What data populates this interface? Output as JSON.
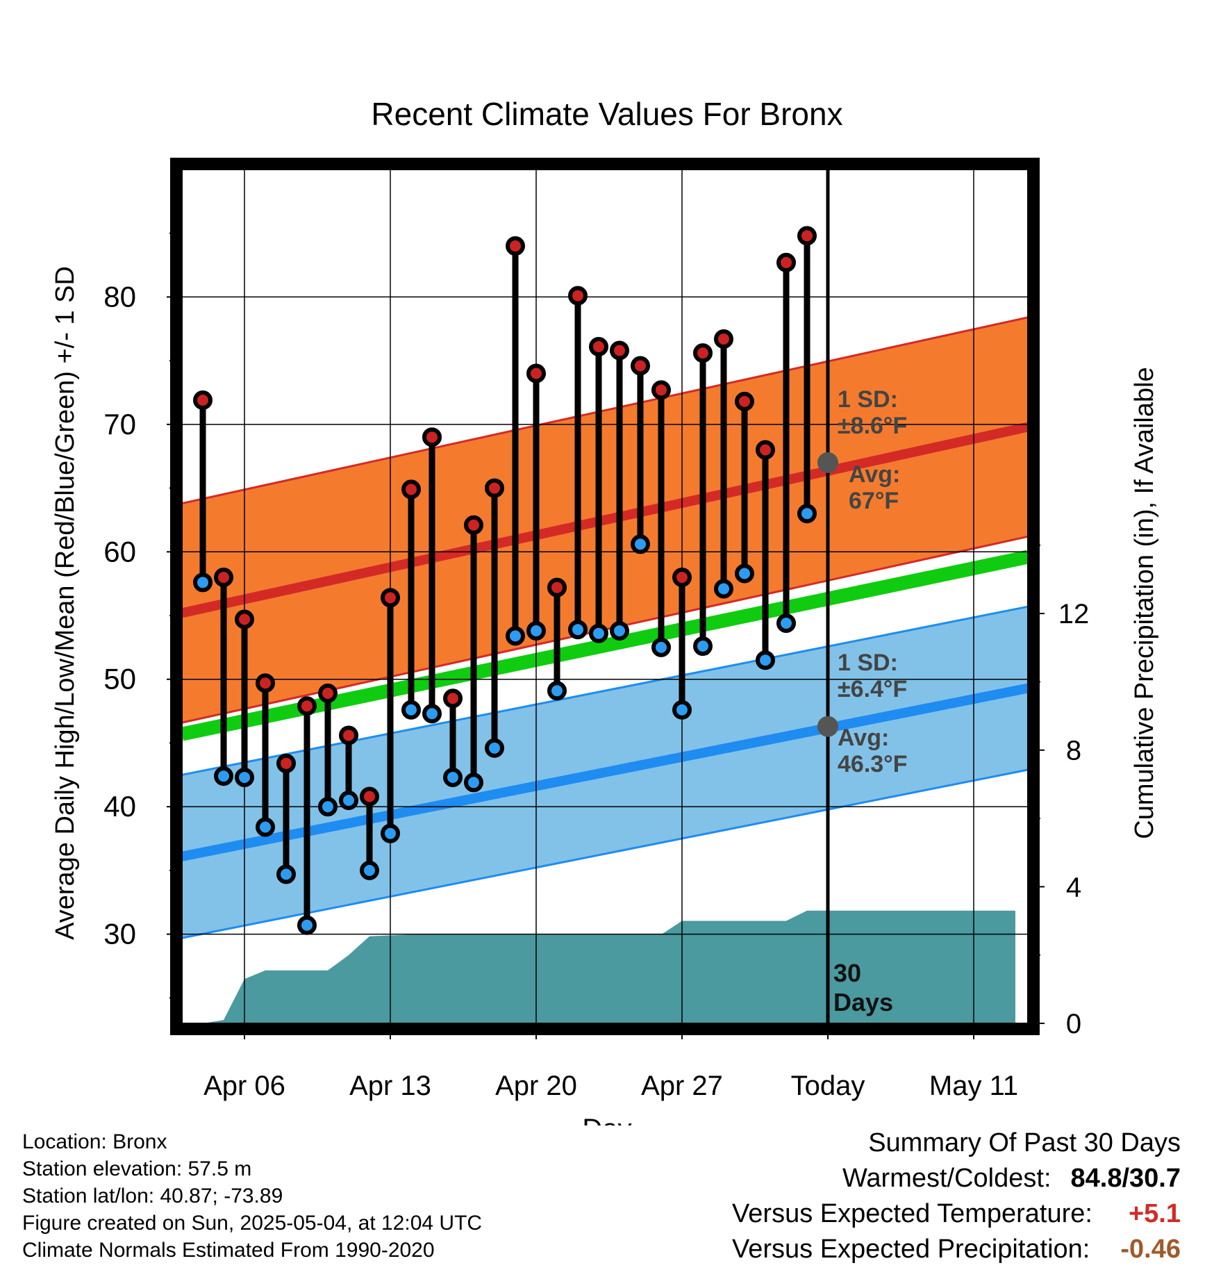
{
  "chart_data": {
    "type": "line",
    "title": "Recent Climate Values For Bronx",
    "xlabel": "Day",
    "ylabel": "Average Daily High/Low/Mean (Red/Blue/Green) +/- 1 SD",
    "y2label": "Cumulative Precipitation (in), If Available",
    "x_ticks": [
      "Apr 06",
      "Apr 13",
      "Apr 20",
      "Apr 27",
      "Today",
      "May 11"
    ],
    "y_ticks": [
      "30",
      "40",
      "50",
      "60",
      "70",
      "80"
    ],
    "y2_ticks": [
      "0",
      "4",
      "8",
      "12"
    ],
    "ylim": [
      23,
      90
    ],
    "y2lim": [
      0,
      25
    ],
    "x_start": "Apr 03",
    "x_end": "May 13",
    "days": [
      "Apr 04",
      "Apr 05",
      "Apr 06",
      "Apr 07",
      "Apr 08",
      "Apr 09",
      "Apr 10",
      "Apr 11",
      "Apr 12",
      "Apr 13",
      "Apr 14",
      "Apr 15",
      "Apr 16",
      "Apr 17",
      "Apr 18",
      "Apr 19",
      "Apr 20",
      "Apr 21",
      "Apr 22",
      "Apr 23",
      "Apr 24",
      "Apr 25",
      "Apr 26",
      "Apr 27",
      "Apr 28",
      "Apr 29",
      "Apr 30",
      "May 01",
      "May 02",
      "May 03"
    ],
    "highs": [
      71.9,
      58.0,
      54.7,
      49.7,
      43.4,
      47.9,
      48.9,
      45.6,
      40.8,
      56.4,
      64.9,
      69.0,
      48.5,
      62.1,
      65.0,
      84.0,
      74.0,
      57.2,
      80.1,
      76.1,
      75.8,
      74.6,
      72.7,
      58.0,
      75.6,
      76.7,
      71.8,
      68.0,
      82.7,
      84.8
    ],
    "lows": [
      57.6,
      42.4,
      42.3,
      38.4,
      34.7,
      30.7,
      40.0,
      40.5,
      35.0,
      37.9,
      47.6,
      47.3,
      42.3,
      41.9,
      44.6,
      53.4,
      53.8,
      49.1,
      53.9,
      53.6,
      53.8,
      60.6,
      52.5,
      47.6,
      52.6,
      57.1,
      58.3,
      51.5,
      54.4,
      63.0
    ],
    "normal_high": {
      "start": 55.2,
      "end": 69.8,
      "sd": 8.6
    },
    "normal_low": {
      "start": 36.1,
      "end": 49.3,
      "sd": 6.4
    },
    "normal_mean": {
      "start": 45.7,
      "end": 59.6
    },
    "precip": [
      {
        "day": "Apr 04",
        "value": 0.0
      },
      {
        "day": "Apr 05",
        "value": 0.1
      },
      {
        "day": "Apr 06",
        "value": 1.3
      },
      {
        "day": "Apr 07",
        "value": 1.55
      },
      {
        "day": "Apr 10",
        "value": 1.55
      },
      {
        "day": "Apr 11",
        "value": 2.0
      },
      {
        "day": "Apr 12",
        "value": 2.55
      },
      {
        "day": "Apr 14",
        "value": 2.6
      },
      {
        "day": "Apr 26",
        "value": 2.6
      },
      {
        "day": "Apr 27",
        "value": 3.0
      },
      {
        "day": "May 02",
        "value": 3.0
      },
      {
        "day": "May 03",
        "value": 3.3
      },
      {
        "day": "May 13",
        "value": 3.3
      }
    ],
    "today_label": [
      "30",
      "Days"
    ],
    "high_sd_label": [
      "1 SD:",
      "±8.6°F"
    ],
    "high_avg_label": [
      "Avg:",
      "67°F"
    ],
    "low_sd_label": [
      "1 SD:",
      "±6.4°F"
    ],
    "low_avg_label": [
      "Avg:",
      "46.3°F"
    ],
    "today_high_avg": 67,
    "today_low_avg": 46.3,
    "colors": {
      "high_band": "#f47b2e",
      "high_line": "#d42a26",
      "low_band": "#82c2e8",
      "low_line": "#1e8cf0",
      "mean_line": "#10cc10",
      "precip": "#4a9aa0",
      "high_dot": "#cc2222",
      "low_dot": "#2b9cf2",
      "label": "#444444"
    }
  },
  "info": {
    "location": "Location: Bronx",
    "elevation": "Station elevation: 57.5 m",
    "latlon": "Station lat/lon: 40.87; -73.89",
    "created": "Figure created on Sun, 2025-05-04, at 12:04 UTC",
    "normals": "Climate Normals Estimated From 1990-2020"
  },
  "summary": {
    "title": "Summary Of Past 30 Days",
    "warm_cold_label": "Warmest/Coldest:",
    "warm_cold_value": "84.8/30.7",
    "temp_label": "Versus Expected Temperature:",
    "temp_value": "+5.1",
    "temp_color": "#d42a26",
    "precip_label": "Versus Expected Precipitation:",
    "precip_value": "-0.46",
    "precip_color": "#a05a2c"
  }
}
